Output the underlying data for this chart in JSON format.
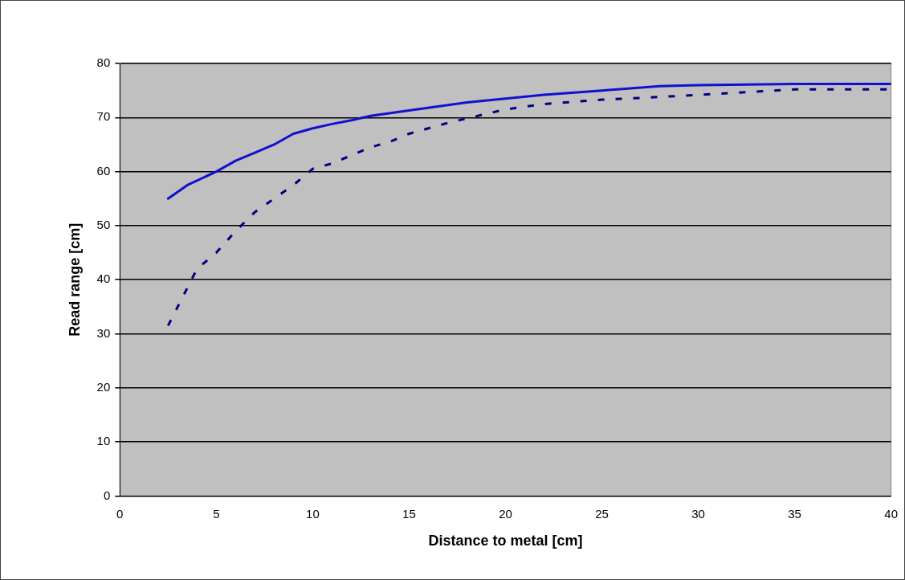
{
  "chart_data": {
    "type": "line",
    "xlabel": "Distance to metal [cm]",
    "ylabel": "Read range [cm]",
    "xlim": [
      0,
      40
    ],
    "xticks": [
      0,
      5,
      10,
      15,
      20,
      25,
      30,
      35,
      40
    ],
    "ylim": [
      0,
      80
    ],
    "yticks": [
      0,
      10,
      20,
      30,
      40,
      50,
      60,
      70,
      80
    ],
    "grid": "y",
    "legend": false,
    "marker": "none",
    "series": [
      {
        "color": "#1010d0",
        "line_style": "solid",
        "x": [
          2.5,
          3.5,
          5,
          6,
          7,
          8,
          8.5,
          9,
          10,
          11,
          12,
          13,
          15,
          18,
          20,
          22,
          25,
          28,
          30,
          35,
          40
        ],
        "values": [
          55,
          57.5,
          60,
          62,
          63.5,
          65,
          66,
          67,
          68,
          68.8,
          69.5,
          70.3,
          71.3,
          72.8,
          73.5,
          74.2,
          75,
          75.8,
          76,
          76.2,
          76.2
        ]
      },
      {
        "color": "#000080",
        "line_style": "dotted",
        "x": [
          2.5,
          3,
          3.5,
          4,
          5,
          5.5,
          6,
          7,
          8,
          9,
          10,
          11,
          12,
          13,
          14,
          15,
          17,
          20,
          22,
          25,
          28,
          30,
          35,
          40
        ],
        "values": [
          31.5,
          35,
          38.5,
          42,
          45,
          47,
          49,
          52.5,
          55,
          57.5,
          60.5,
          61.5,
          63,
          64.5,
          65.5,
          67,
          69,
          71.5,
          72.5,
          73.3,
          73.8,
          74.2,
          75.2,
          75.2
        ]
      }
    ]
  }
}
